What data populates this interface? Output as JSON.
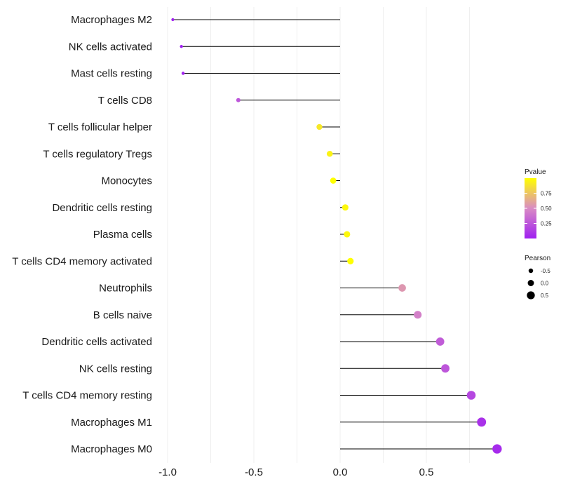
{
  "chart_data": {
    "type": "lollipop",
    "x_ticks": [
      -1.0,
      -0.5,
      0.0,
      0.5
    ],
    "x_tick_labels": [
      "-1.0",
      "-0.5",
      "0.0",
      "0.5"
    ],
    "xlim": [
      -1.0,
      0.9
    ],
    "baseline": 0.0,
    "categories": [
      "Macrophages M2",
      "NK cells activated",
      "Mast cells resting",
      "T cells CD8",
      "T cells follicular helper",
      "T cells regulatory  Tregs ",
      "Monocytes",
      "Dendritic cells resting",
      "Plasma cells",
      "T cells CD4 memory activated",
      "Neutrophils",
      "B cells naive",
      "Dendritic cells activated",
      "NK cells resting",
      "T cells CD4 memory resting",
      "Macrophages M1",
      "Macrophages M0"
    ],
    "pearson": [
      -0.97,
      -0.92,
      -0.91,
      -0.59,
      -0.12,
      -0.06,
      -0.04,
      0.03,
      0.04,
      0.06,
      0.36,
      0.45,
      0.58,
      0.61,
      0.76,
      0.82,
      0.91
    ],
    "pvalue": [
      0.0,
      0.0,
      0.01,
      0.25,
      0.9,
      0.95,
      1.0,
      0.97,
      0.97,
      1.0,
      0.55,
      0.45,
      0.28,
      0.25,
      0.18,
      0.08,
      0.05
    ],
    "legend_color": {
      "title": "Pvalue",
      "ticks": [
        0.25,
        0.5,
        0.75
      ],
      "tick_labels": [
        "0.25",
        "0.50",
        "0.75"
      ],
      "range": [
        0.0,
        1.0
      ],
      "low_color": "#a020f0",
      "mid_color": "#d98bc4",
      "high_color": "#ffff00"
    },
    "legend_size": {
      "title": "Pearson",
      "values": [
        -0.5,
        0.0,
        0.5
      ],
      "labels": [
        "-0.5",
        "0.0",
        "0.5"
      ]
    },
    "stem_color": "#000000",
    "grid_color": "#ebebeb",
    "legend_position": "right"
  }
}
